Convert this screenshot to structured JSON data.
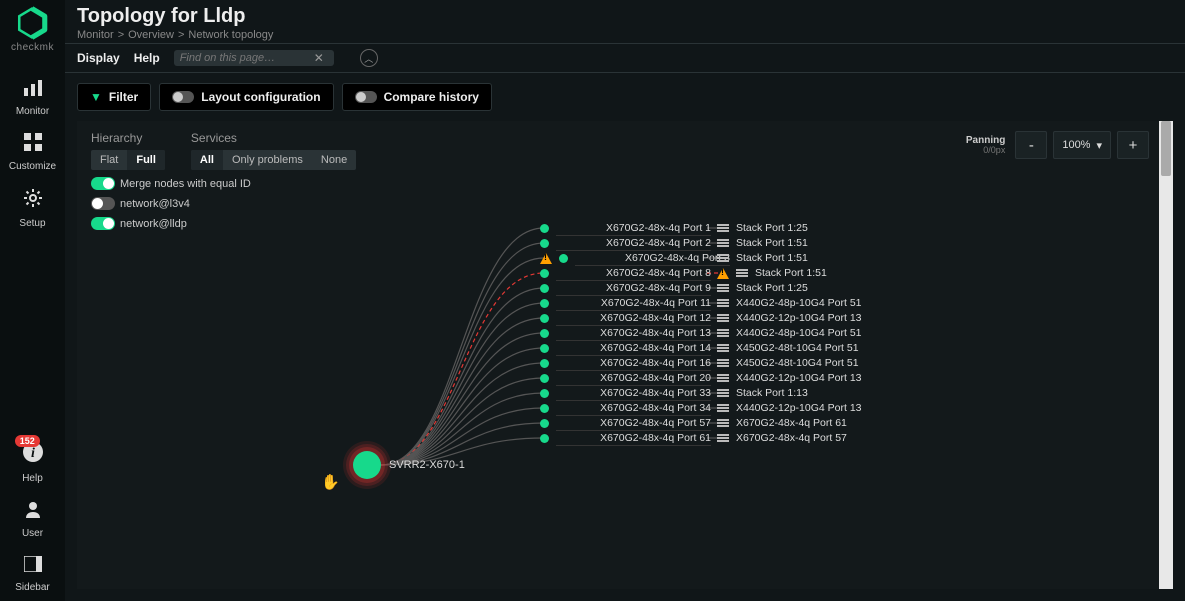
{
  "brand": "checkmk",
  "sidebar_nav": [
    {
      "key": "monitor",
      "label": "Monitor",
      "glyph": "bars"
    },
    {
      "key": "customize",
      "label": "Customize",
      "glyph": "grid"
    },
    {
      "key": "setup",
      "label": "Setup",
      "glyph": "gear"
    }
  ],
  "sidebar_bottom": [
    {
      "key": "help",
      "label": "Help",
      "glyph": "info",
      "badge": "152"
    },
    {
      "key": "user",
      "label": "User",
      "glyph": "user"
    },
    {
      "key": "sidebar",
      "label": "Sidebar",
      "glyph": "panel"
    }
  ],
  "title": "Topology for Lldp",
  "breadcrumbs": [
    "Monitor",
    "Overview",
    "Network topology"
  ],
  "menu": {
    "display": "Display",
    "help": "Help",
    "search_placeholder": "Find on this page…"
  },
  "toolbar": {
    "filter": "Filter",
    "layout": "Layout configuration",
    "compare": "Compare history"
  },
  "filters": {
    "hierarchy": {
      "title": "Hierarchy",
      "options": [
        "Flat",
        "Full"
      ],
      "active": "Full"
    },
    "services": {
      "title": "Services",
      "options": [
        "All",
        "Only problems",
        "None"
      ],
      "active": "All"
    },
    "toggles": [
      {
        "label": "Merge nodes with equal ID",
        "on": true
      },
      {
        "label": "network@l3v4",
        "on": false
      },
      {
        "label": "network@lldp",
        "on": true
      }
    ]
  },
  "zoom": {
    "panning_label": "Panning",
    "panning_value": "0/0px",
    "zoom": "100%"
  },
  "topology": {
    "hub": {
      "label": "SVRR2-X670-1",
      "color": "#17d98b",
      "alert_rings": true
    },
    "left_ports": [
      {
        "label": "X670G2-48x-4q Port 1",
        "status": "ok"
      },
      {
        "label": "X670G2-48x-4q Port 2",
        "status": "ok"
      },
      {
        "label": "X670G2-48x-4q Port 3",
        "status": "ok",
        "warn": true
      },
      {
        "label": "X670G2-48x-4q Port 8",
        "status": "alert"
      },
      {
        "label": "X670G2-48x-4q Port 9",
        "status": "ok"
      },
      {
        "label": "X670G2-48x-4q Port 11",
        "status": "ok"
      },
      {
        "label": "X670G2-48x-4q Port 12",
        "status": "ok"
      },
      {
        "label": "X670G2-48x-4q Port 13",
        "status": "ok"
      },
      {
        "label": "X670G2-48x-4q Port 14",
        "status": "ok"
      },
      {
        "label": "X670G2-48x-4q Port 16",
        "status": "ok"
      },
      {
        "label": "X670G2-48x-4q Port 20",
        "status": "ok"
      },
      {
        "label": "X670G2-48x-4q Port 33",
        "status": "ok"
      },
      {
        "label": "X670G2-48x-4q Port 34",
        "status": "ok"
      },
      {
        "label": "X670G2-48x-4q Port 57",
        "status": "ok"
      },
      {
        "label": "X670G2-48x-4q Port 61",
        "status": "ok"
      }
    ],
    "right_ports": [
      {
        "label": "Stack Port 1:25"
      },
      {
        "label": "Stack Port 1:51"
      },
      {
        "label": "Stack Port 1:51"
      },
      {
        "label": "Stack Port 1:51",
        "warn": true,
        "alert": true
      },
      {
        "label": "Stack Port 1:25"
      },
      {
        "label": "X440G2-48p-10G4 Port 51"
      },
      {
        "label": "X440G2-12p-10G4 Port 13"
      },
      {
        "label": "X440G2-48p-10G4 Port 51"
      },
      {
        "label": "X450G2-48t-10G4 Port 51"
      },
      {
        "label": "X450G2-48t-10G4 Port 51"
      },
      {
        "label": "X440G2-12p-10G4 Port 13"
      },
      {
        "label": "Stack Port 1:13"
      },
      {
        "label": "X440G2-12p-10G4 Port 13"
      },
      {
        "label": "X670G2-48x-4q Port 61"
      },
      {
        "label": "X670G2-48x-4q Port 57"
      }
    ],
    "colors": {
      "ok": "#17d98b",
      "alert": "#e53935",
      "warn": "#ffa000",
      "link": "#555"
    }
  }
}
